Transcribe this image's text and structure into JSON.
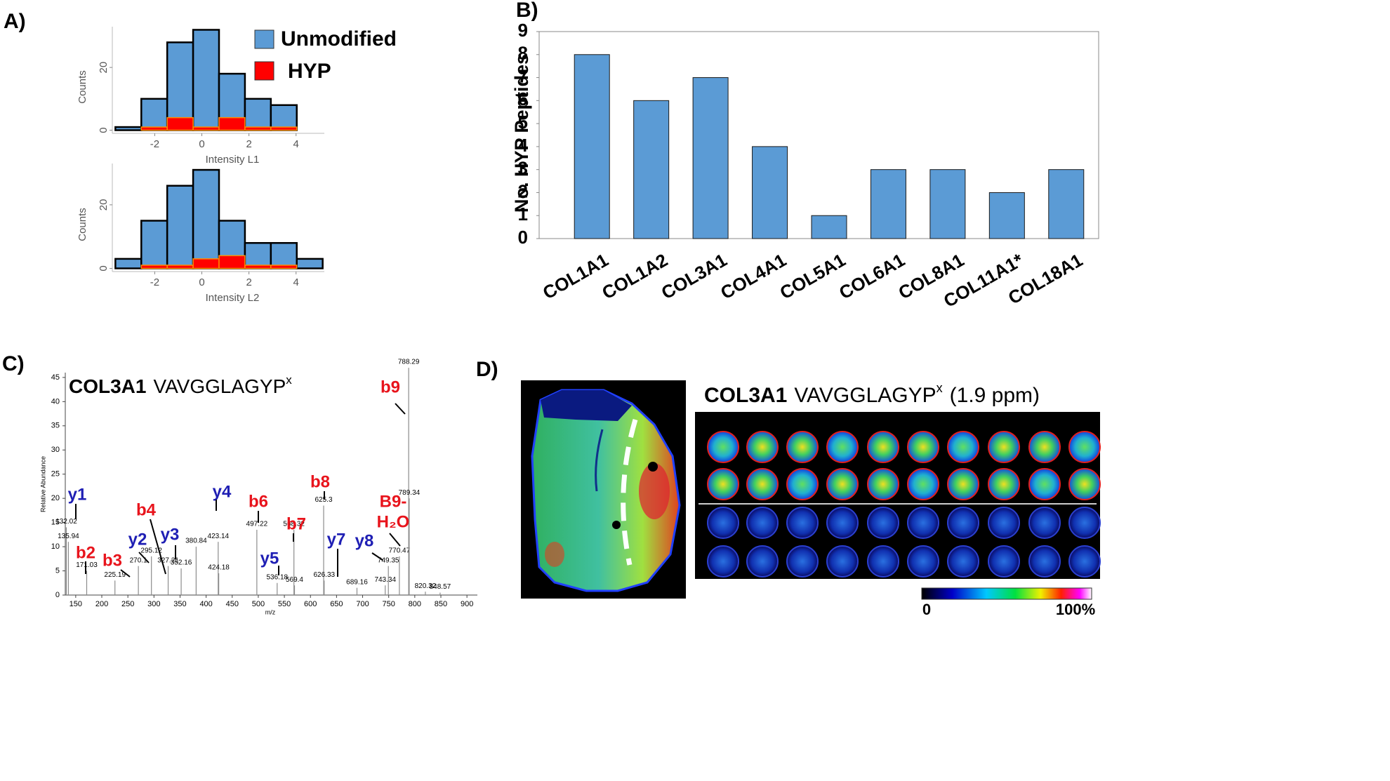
{
  "panel_labels": [
    "A)",
    "B)",
    "C)",
    "D)"
  ],
  "chart_data": [
    {
      "type": "histogram",
      "xlabel": "Intensity L1",
      "ylabel": "Counts",
      "bins": [
        -3.67,
        -2.57,
        -1.47,
        -0.37,
        0.73,
        1.83,
        2.93,
        4.03
      ],
      "series": [
        {
          "name": "Unmodified",
          "color": "#5b9bd5",
          "values": [
            1,
            10,
            28,
            32,
            18,
            10,
            8
          ]
        },
        {
          "name": "HYP",
          "color": "#ff0000",
          "values": [
            0,
            1,
            4,
            1,
            4,
            1,
            1
          ]
        }
      ],
      "xlim": [
        -3.8,
        5.2
      ],
      "ylim": [
        -1,
        33
      ],
      "xticks": [
        -2,
        0,
        2,
        4
      ],
      "yticks": [
        0,
        20
      ]
    },
    {
      "type": "histogram",
      "xlabel": "Intensity L2",
      "ylabel": "Counts",
      "bins": [
        -3.67,
        -2.57,
        -1.47,
        -0.37,
        0.73,
        1.83,
        2.93,
        4.03,
        5.13
      ],
      "series": [
        {
          "color": "#5b9bd5",
          "values": [
            3,
            15,
            26,
            31,
            15,
            8,
            8,
            3
          ]
        },
        {
          "color": "#ff0000",
          "values": [
            0,
            1,
            1,
            3,
            4,
            1,
            1,
            0
          ]
        }
      ],
      "xlim": [
        -3.8,
        5.2
      ],
      "ylim": [
        -1,
        33
      ],
      "xticks": [
        -2,
        0,
        2,
        4
      ],
      "yticks": [
        0,
        20
      ]
    },
    {
      "type": "bar",
      "ylabel": "No. HYP Peptides",
      "categories": [
        "COL1A1",
        "COL1A2",
        "COL3A1",
        "COL4A1",
        "COL5A1",
        "COL6A1",
        "COL8A1",
        "COL11A1*",
        "COL18A1"
      ],
      "values": [
        8,
        6,
        7,
        4,
        1,
        3,
        3,
        2,
        3
      ],
      "color": "#5b9bd5",
      "ylim": [
        0,
        9
      ],
      "yticks": [
        0,
        1,
        2,
        3,
        4,
        5,
        6,
        7,
        8,
        9
      ]
    },
    {
      "type": "spectrum",
      "title": {
        "bold": "COL3A1",
        "text": "VAVGGLAGYP",
        "sup": "x"
      },
      "xlabel": "m/z",
      "ylabel": "Relative Abundance",
      "color": "#8c8c8c",
      "x": [
        132.02,
        135.94,
        171.03,
        225.19,
        270.1,
        295.12,
        327.21,
        352.16,
        380.84,
        423.14,
        424.18,
        497.22,
        536.18,
        568.32,
        569.4,
        625.3,
        626.33,
        689.16,
        743.34,
        749.35,
        770.47,
        788.29,
        789.34,
        820.32,
        848.57
      ],
      "values": [
        14,
        11,
        5,
        3,
        6,
        8,
        6,
        5.5,
        10,
        11,
        4.5,
        13.5,
        2.5,
        13.5,
        2,
        18.5,
        3,
        1.5,
        2,
        6,
        8,
        47,
        20,
        0.7,
        0.5
      ],
      "xlim": [
        130,
        920
      ],
      "ylim": [
        0,
        46
      ],
      "xticks": [
        150,
        200,
        250,
        300,
        350,
        400,
        450,
        500,
        550,
        600,
        650,
        700,
        750,
        800,
        850,
        900
      ],
      "yticks": [
        0,
        5,
        10,
        15,
        20,
        25,
        30,
        35,
        40,
        45
      ],
      "annotations": [
        {
          "text": "y1",
          "color": "#1f1fb4"
        },
        {
          "text": "b2",
          "color": "#e8141c"
        },
        {
          "text": "b3",
          "color": "#e8141c"
        },
        {
          "text": "y2",
          "color": "#1f1fb4"
        },
        {
          "text": "b4",
          "color": "#e8141c"
        },
        {
          "text": "y3",
          "color": "#1f1fb4"
        },
        {
          "text": "y4",
          "color": "#1f1fb4"
        },
        {
          "text": "y5",
          "color": "#1f1fb4"
        },
        {
          "text": "b6",
          "color": "#e8141c"
        },
        {
          "text": "b7",
          "color": "#e8141c"
        },
        {
          "text": "b8",
          "color": "#e8141c"
        },
        {
          "text": "y7",
          "color": "#1f1fb4"
        },
        {
          "text": "y8",
          "color": "#1f1fb4"
        },
        {
          "text": [
            "B9-",
            "H₂O"
          ],
          "color": "#e8141c"
        },
        {
          "text": "b9",
          "color": "#e8141c"
        }
      ]
    }
  ],
  "image_panel": {
    "title": {
      "bold": "COL3A1",
      "text": "VAVGGLAGYP",
      "sup": "x",
      "note": "(1.9 ppm)"
    },
    "colorbar_labels": [
      "0",
      "100%"
    ]
  }
}
